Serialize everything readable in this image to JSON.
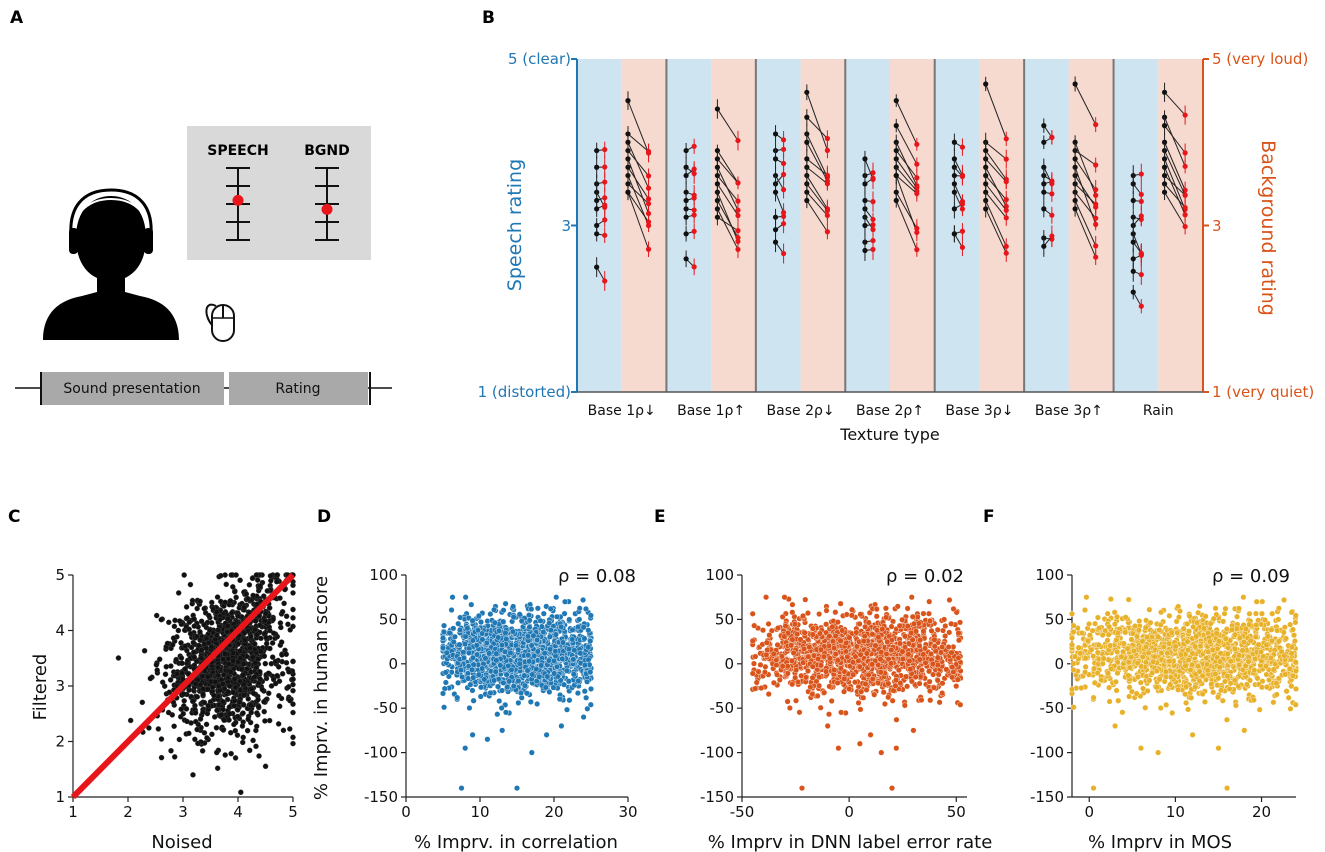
{
  "panels": {
    "A": "A",
    "B": "B",
    "C": "C",
    "D": "D",
    "E": "E",
    "F": "F"
  },
  "panel_a": {
    "speech_label": "SPEECH",
    "bgnd_label": "BGND",
    "speech_slider_value": 3.2,
    "bgnd_slider_value": 2.7,
    "timeline_sound": "Sound presentation",
    "timeline_rating": "Rating",
    "icons": [
      "headphones-listener-icon",
      "mouse-icon"
    ]
  },
  "colors": {
    "speech_blue": "#1f77b4",
    "background_orange": "#d9541a",
    "blue_band": "#cfe4f1",
    "pink_band": "#f6d9cf",
    "black_dot": "#111111",
    "red_dot": "#e8161b",
    "panel_d": "#1f77b4",
    "panel_e": "#d9541a",
    "panel_f": "#e8b12a",
    "grey_box": "#d9d9d9"
  },
  "chart_data": [
    {
      "id": "B",
      "type": "scatter",
      "title": "",
      "xlabel": "Texture type",
      "ylabel": "Speech rating",
      "ylabel_right": "Background rating",
      "ylim": [
        1,
        5
      ],
      "yticks_left": [
        "5 (clear)",
        "3",
        "1 (distorted)"
      ],
      "yticks_right": [
        "5 (very loud)",
        "3",
        "1 (very quiet)"
      ],
      "categories": [
        "Base 1ρ↓",
        "Base 1ρ↑",
        "Base 2ρ↓",
        "Base 2ρ↑",
        "Base 3ρ↓",
        "Base 3ρ↑",
        "Rain"
      ],
      "series": [
        {
          "name": "Speech rating",
          "groups": [
            [
              3.9,
              3.7,
              3.5,
              3.4,
              3.3,
              3.2,
              3.0,
              2.9,
              2.5
            ],
            [
              3.9,
              3.7,
              3.6,
              3.4,
              3.3,
              3.2,
              3.1,
              2.9,
              2.6
            ],
            [
              4.1,
              3.9,
              3.8,
              3.6,
              3.5,
              3.4,
              3.1,
              2.95,
              2.8
            ],
            [
              3.8,
              3.6,
              3.5,
              3.3,
              3.2,
              3.1,
              3.0,
              2.8,
              2.7
            ],
            [
              4.0,
              3.8,
              3.7,
              3.6,
              3.5,
              3.4,
              3.2,
              2.9,
              2.9
            ],
            [
              4.2,
              4.0,
              3.7,
              3.6,
              3.5,
              3.4,
              3.2,
              2.85,
              2.75
            ],
            [
              3.6,
              3.5,
              3.3,
              3.1,
              3.0,
              2.9,
              2.8,
              2.6,
              2.45,
              2.2
            ]
          ]
        },
        {
          "name": "Background rating",
          "groups": [
            [
              4.5,
              4.1,
              4.0,
              3.9,
              3.8,
              3.7,
              3.6,
              3.5,
              3.4,
              3.4
            ],
            [
              4.4,
              3.9,
              3.8,
              3.7,
              3.6,
              3.5,
              3.4,
              3.3,
              3.2,
              3.1
            ],
            [
              4.6,
              4.3,
              4.1,
              4.0,
              3.8,
              3.7,
              3.6,
              3.5,
              3.4,
              3.3
            ],
            [
              4.5,
              4.2,
              4.0,
              3.9,
              3.8,
              3.7,
              3.6,
              3.6,
              3.4,
              3.3
            ],
            [
              4.7,
              4.0,
              3.9,
              3.8,
              3.7,
              3.6,
              3.5,
              3.4,
              3.3,
              3.2
            ],
            [
              4.7,
              4.0,
              3.9,
              3.8,
              3.7,
              3.6,
              3.5,
              3.4,
              3.3,
              3.2
            ],
            [
              4.6,
              4.3,
              4.2,
              4.0,
              3.9,
              3.8,
              3.7,
              3.6,
              3.5,
              3.4
            ]
          ]
        }
      ]
    },
    {
      "id": "C",
      "type": "scatter",
      "xlabel": "Noised",
      "ylabel": "Filtered",
      "xlim": [
        1,
        5
      ],
      "ylim": [
        1,
        5
      ],
      "xticks": [
        "1",
        "2",
        "3",
        "4",
        "5"
      ],
      "yticks": [
        "1",
        "2",
        "3",
        "4",
        "5"
      ],
      "series": [
        {
          "name": "ratings",
          "n_points": 1400,
          "x_mean": 3.8,
          "y_mean": 3.4,
          "sd": 0.7
        },
        {
          "name": "identity",
          "x": [
            1,
            5
          ],
          "y": [
            1,
            5
          ]
        }
      ]
    },
    {
      "id": "D",
      "type": "scatter",
      "xlabel": "% Imprv. in correlation",
      "ylabel": "% Imprv. in human score",
      "xlim": [
        0,
        30
      ],
      "ylim": [
        -150,
        100
      ],
      "xticks": [
        "0",
        "10",
        "20",
        "30"
      ],
      "yticks": [
        "100",
        "50",
        "0",
        "-50",
        "-100",
        "-150"
      ],
      "annotation": "ρ = 0.08",
      "rho": 0.08,
      "series": [
        {
          "name": "points",
          "n_points": 1500,
          "x_range": [
            5,
            25
          ],
          "y_mean": 10,
          "y_sd": 22,
          "outliers": [
            [
              7.5,
              -140
            ],
            [
              15,
              -140
            ],
            [
              8,
              -95
            ],
            [
              11,
              -85
            ],
            [
              17,
              -100
            ],
            [
              19,
              -80
            ],
            [
              13,
              -75
            ],
            [
              21,
              -70
            ],
            [
              9,
              -80
            ],
            [
              24,
              -60
            ]
          ]
        }
      ]
    },
    {
      "id": "E",
      "type": "scatter",
      "xlabel": "% Imprv in DNN label error rate",
      "ylabel": "",
      "xlim": [
        -50,
        55
      ],
      "ylim": [
        -150,
        100
      ],
      "xticks": [
        "-50",
        "0",
        "50"
      ],
      "yticks": [
        "100",
        "50",
        "0",
        "-50",
        "-100",
        "-150"
      ],
      "annotation": "ρ = 0.02",
      "rho": 0.02,
      "series": [
        {
          "name": "points",
          "n_points": 1500,
          "x_range": [
            -45,
            52
          ],
          "y_mean": 10,
          "y_sd": 22,
          "outliers": [
            [
              -22,
              -140
            ],
            [
              20,
              -140
            ],
            [
              -5,
              -95
            ],
            [
              5,
              -90
            ],
            [
              15,
              -100
            ],
            [
              22,
              -95
            ],
            [
              30,
              -75
            ],
            [
              -10,
              -70
            ],
            [
              10,
              -80
            ]
          ]
        }
      ]
    },
    {
      "id": "F",
      "type": "scatter",
      "xlabel": "% Imprv in MOS",
      "ylabel": "",
      "xlim": [
        -2,
        24
      ],
      "ylim": [
        -150,
        100
      ],
      "xticks": [
        "0",
        "10",
        "20"
      ],
      "yticks": [
        "100",
        "50",
        "0",
        "-50",
        "-100",
        "-150"
      ],
      "annotation": "ρ = 0.09",
      "rho": 0.09,
      "series": [
        {
          "name": "points",
          "n_points": 1500,
          "x_range": [
            -2,
            24
          ],
          "y_mean": 10,
          "y_sd": 22,
          "outliers": [
            [
              0.5,
              -140
            ],
            [
              6,
              -95
            ],
            [
              8,
              -100
            ],
            [
              15,
              -95
            ],
            [
              16,
              -140
            ],
            [
              12,
              -80
            ],
            [
              3,
              -70
            ],
            [
              18,
              -75
            ]
          ]
        }
      ]
    }
  ]
}
